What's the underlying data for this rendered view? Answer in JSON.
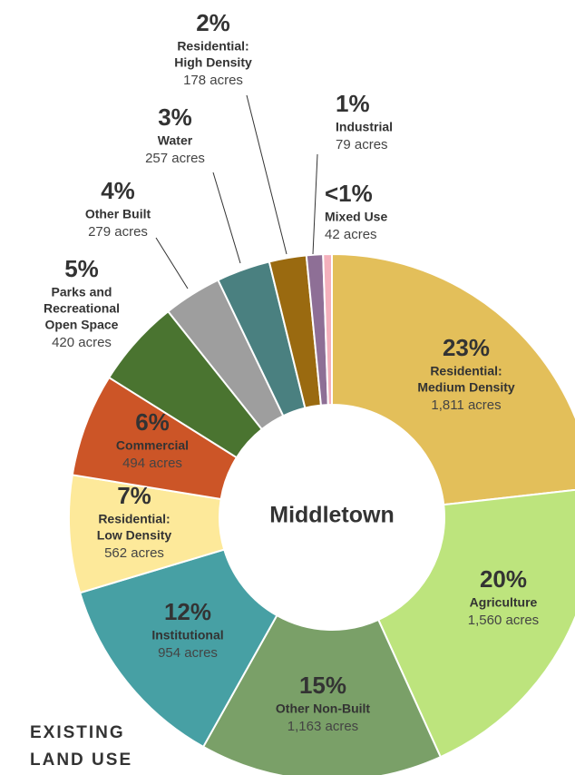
{
  "chart_data": {
    "type": "donut",
    "title": [
      "EXISTING",
      "LAND USE"
    ],
    "center_label": "Middletown",
    "categories": [
      [
        "Residential:",
        "Medium Density"
      ],
      [
        "Agriculture"
      ],
      [
        "Other Non-Built"
      ],
      [
        "Institutional"
      ],
      [
        "Residential:",
        "Low Density"
      ],
      [
        "Commercial"
      ],
      [
        "Parks and",
        "Recreational",
        "Open Space"
      ],
      [
        "Other Built"
      ],
      [
        "Water"
      ],
      [
        "Residential:",
        "High Density"
      ],
      [
        "Industrial"
      ],
      [
        "Mixed Use"
      ]
    ],
    "values": [
      1811,
      1560,
      1163,
      954,
      562,
      494,
      420,
      279,
      257,
      178,
      79,
      42
    ],
    "value_labels": [
      "1,811 acres",
      "1,560 acres",
      "1,163 acres",
      "954 acres",
      "562 acres",
      "494 acres",
      "420 acres",
      "279 acres",
      "257 acres",
      "178 acres",
      "79 acres",
      "42 acres"
    ],
    "percent_labels": [
      "23%",
      "20%",
      "15%",
      "12%",
      "7%",
      "6%",
      "5%",
      "4%",
      "3%",
      "2%",
      "1%",
      "<1%"
    ],
    "colors": [
      "#e3bf5a",
      "#bde47d",
      "#7aa068",
      "#47a0a4",
      "#fde99a",
      "#cc5527",
      "#4a7430",
      "#9e9e9e",
      "#4a8080",
      "#9a6a10",
      "#8e6f96",
      "#f4b0bc"
    ]
  }
}
